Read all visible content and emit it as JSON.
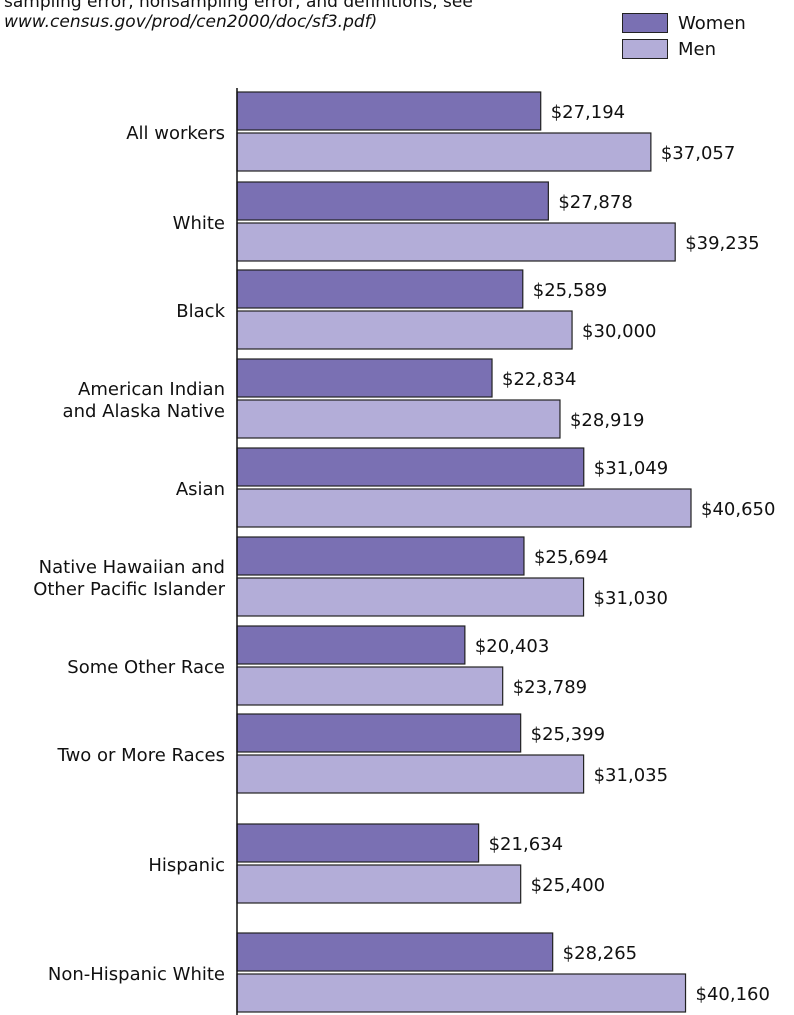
{
  "note": {
    "line1": "sampling error, nonsampling error, and definitions, see",
    "line2": "www.census.gov/prod/cen2000/doc/sf3.pdf)"
  },
  "colors": {
    "women": "#7A70B3",
    "men": "#B3ADD8",
    "border": "#222222",
    "axis": "#111111"
  },
  "chart_data": {
    "type": "bar",
    "orientation": "horizontal",
    "categories": [
      "All workers",
      "White",
      "Black",
      "American Indian|and Alaska Native",
      "Asian",
      "Native Hawaiian and|Other Pacific Islander",
      "Some Other Race",
      "Two or More Races",
      "Hispanic",
      "Non-Hispanic White"
    ],
    "series": [
      {
        "name": "Women",
        "values": [
          27194,
          27878,
          25589,
          22834,
          31049,
          25694,
          20403,
          25399,
          21634,
          28265
        ],
        "labels": [
          "$27,194",
          "$27,878",
          "$25,589",
          "$22,834",
          "$31,049",
          "$25,694",
          "$20,403",
          "$25,399",
          "$21,634",
          "$28,265"
        ]
      },
      {
        "name": "Men",
        "values": [
          37057,
          39235,
          30000,
          28919,
          40650,
          31030,
          23789,
          31035,
          25400,
          40160
        ],
        "labels": [
          "$37,057",
          "$39,235",
          "$30,000",
          "$28,919",
          "$40,650",
          "$31,030",
          "$23,789",
          "$31,035",
          "$25,400",
          "$40,160"
        ]
      }
    ],
    "legend_position": "top-right",
    "grid": false
  }
}
